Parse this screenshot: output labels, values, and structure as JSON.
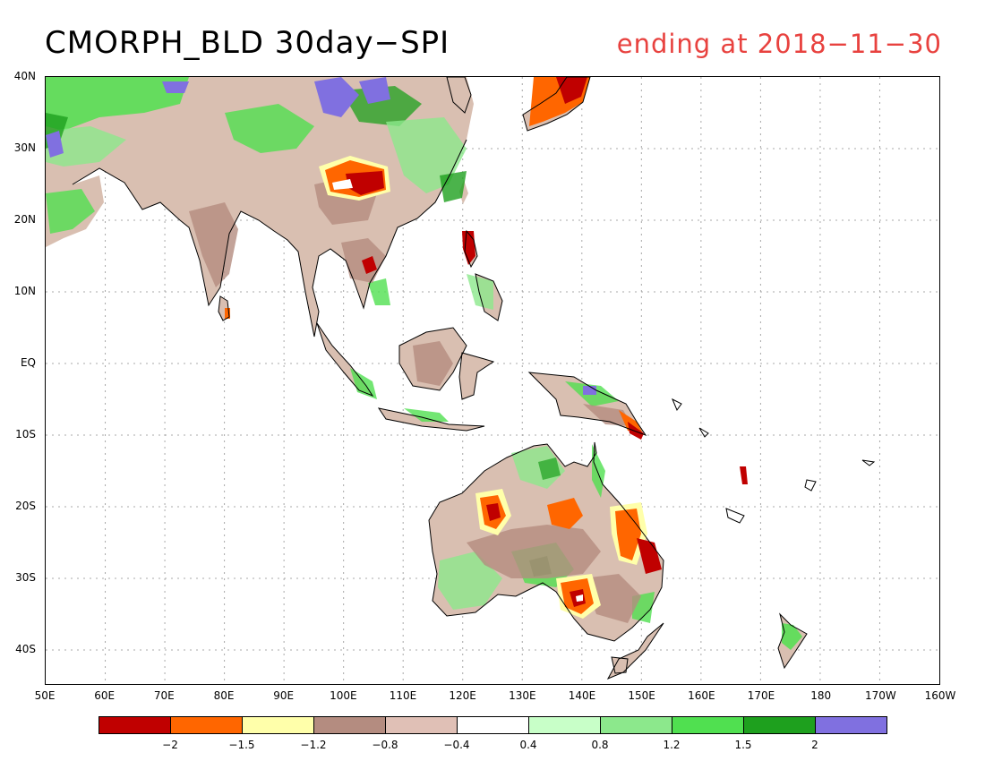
{
  "title": "CMORPH_BLD 30day−SPI",
  "subtitle": "ending at 2018−11−30",
  "colors": {
    "subtitle": "#e8423f",
    "coast": "#000000",
    "grid": "#a8a8a8",
    "land_base": "#d9bfb1"
  },
  "lat_labels": [
    "40N",
    "30N",
    "20N",
    "10N",
    "EQ",
    "10S",
    "20S",
    "30S",
    "40S"
  ],
  "lon_labels": [
    "50E",
    "60E",
    "70E",
    "80E",
    "90E",
    "100E",
    "110E",
    "120E",
    "130E",
    "140E",
    "150E",
    "160E",
    "170E",
    "180",
    "170W",
    "160W"
  ],
  "colorbar": {
    "colors": [
      "#c00000",
      "#ff6600",
      "#ffffaa",
      "#b48c80",
      "#e0c0b6",
      "#ffffff",
      "#c8ffc8",
      "#8ce88c",
      "#50e050",
      "#1ea01e",
      "#8070e0"
    ],
    "labels": [
      "−2",
      "−1.5",
      "−1.2",
      "−0.8",
      "−0.4",
      "0.4",
      "0.8",
      "1.2",
      "1.5",
      "2"
    ]
  }
}
